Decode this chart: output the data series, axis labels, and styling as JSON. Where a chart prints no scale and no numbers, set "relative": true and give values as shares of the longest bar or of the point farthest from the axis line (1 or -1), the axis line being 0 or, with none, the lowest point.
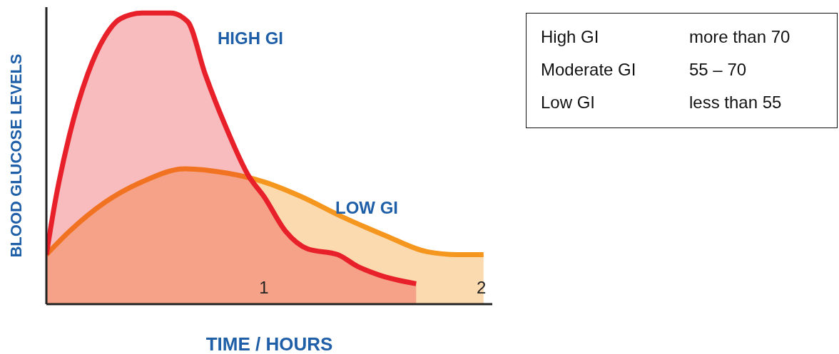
{
  "chart_data": [
    {
      "type": "area",
      "relative": true,
      "xlabel": "TIME / HOURS",
      "ylabel": "BLOOD GLUCOSE LEVELS",
      "xlim": [
        0,
        2.05
      ],
      "xticks": [
        1,
        2
      ],
      "legend": false,
      "grid": false,
      "series": [
        {
          "name": "HIGH GI",
          "color": "#e8202a",
          "x": [
            0,
            0.04,
            0.106,
            0.19,
            0.27,
            0.34,
            0.44,
            0.57,
            0.65,
            0.73,
            0.83,
            0.93,
            1.0,
            1.1,
            1.2,
            1.34,
            1.43,
            1.53,
            1.7
          ],
          "values": [
            0.17,
            0.35,
            0.58,
            0.79,
            0.92,
            0.98,
            1.0,
            1.0,
            0.97,
            0.79,
            0.6,
            0.44,
            0.37,
            0.25,
            0.19,
            0.17,
            0.13,
            0.1,
            0.07
          ]
        },
        {
          "name": "LOW GI",
          "color": "#f5961e",
          "x": [
            0,
            0.106,
            0.27,
            0.44,
            0.64,
            0.83,
            1.0,
            1.17,
            1.36,
            1.56,
            1.75,
            1.89,
            2.01
          ],
          "values": [
            0.17,
            0.25,
            0.35,
            0.42,
            0.465,
            0.45,
            0.42,
            0.37,
            0.3,
            0.235,
            0.18,
            0.17,
            0.17
          ]
        }
      ]
    },
    {
      "type": "other",
      "annotations": [
        "High GI",
        "more than 70",
        "Moderate GI",
        "55 – 70",
        "Low GI",
        "less than 55"
      ]
    }
  ]
}
